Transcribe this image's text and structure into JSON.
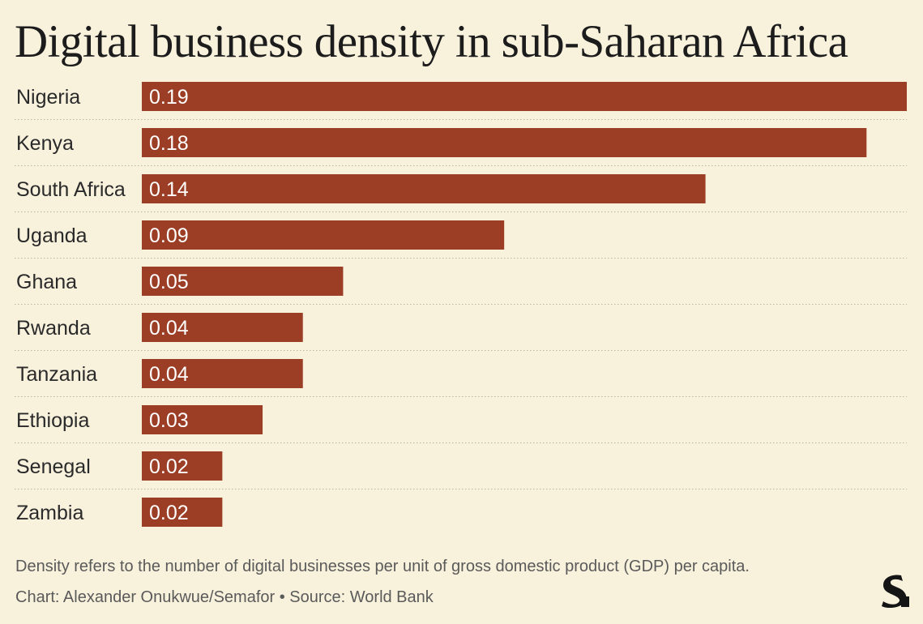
{
  "chart_data": {
    "type": "bar",
    "orientation": "horizontal",
    "title": "Digital business density in sub-Saharan Africa",
    "categories": [
      "Nigeria",
      "Kenya",
      "South Africa",
      "Uganda",
      "Ghana",
      "Rwanda",
      "Tanzania",
      "Ethiopia",
      "Senegal",
      "Zambia"
    ],
    "values": [
      0.19,
      0.18,
      0.14,
      0.09,
      0.05,
      0.04,
      0.04,
      0.03,
      0.02,
      0.02
    ],
    "value_labels": [
      "0.19",
      "0.18",
      "0.14",
      "0.09",
      "0.05",
      "0.04",
      "0.04",
      "0.03",
      "0.02",
      "0.02"
    ],
    "bar_color": "#9b3e25",
    "grid": false,
    "legend": "none"
  },
  "footer": {
    "note": "Density refers to the number of digital businesses per unit of gross domestic product (GDP) per capita.",
    "credit": "Chart: Alexander Onukwue/Semafor • Source: World Bank"
  },
  "logo": {
    "icon": "semafor-logo-icon"
  },
  "colors": {
    "background": "#f8f1dc",
    "bar": "#9b3e25"
  }
}
